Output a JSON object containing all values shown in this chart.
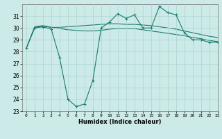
{
  "title": "",
  "xlabel": "Humidex (Indice chaleur)",
  "xlim": [
    -0.5,
    23
  ],
  "ylim": [
    23,
    32
  ],
  "yticks": [
    23,
    24,
    25,
    26,
    27,
    28,
    29,
    30,
    31
  ],
  "xticks": [
    0,
    1,
    2,
    3,
    4,
    5,
    6,
    7,
    8,
    9,
    10,
    11,
    12,
    13,
    14,
    15,
    16,
    17,
    18,
    19,
    20,
    21,
    22,
    23
  ],
  "bg_color": "#cceae7",
  "grid_color": "#aad4d0",
  "line_color": "#1a7a6e",
  "series_main": [
    28.3,
    30.0,
    30.1,
    29.9,
    27.5,
    24.0,
    23.4,
    23.6,
    25.6,
    30.0,
    30.5,
    31.2,
    30.8,
    31.1,
    30.0,
    30.0,
    31.8,
    31.3,
    31.1,
    29.6,
    29.0,
    29.0,
    28.8,
    28.8
  ],
  "series_upper": [
    28.3,
    30.1,
    30.2,
    30.05,
    30.05,
    30.1,
    30.15,
    30.2,
    30.25,
    30.3,
    30.35,
    30.35,
    30.3,
    30.3,
    30.25,
    30.2,
    30.1,
    30.0,
    29.9,
    29.75,
    29.6,
    29.45,
    29.3,
    29.2
  ],
  "series_lower": [
    28.3,
    30.05,
    30.15,
    30.05,
    29.95,
    29.85,
    29.8,
    29.75,
    29.75,
    29.8,
    29.9,
    29.95,
    29.95,
    29.95,
    29.85,
    29.75,
    29.65,
    29.55,
    29.45,
    29.35,
    29.2,
    29.1,
    28.95,
    28.85
  ]
}
